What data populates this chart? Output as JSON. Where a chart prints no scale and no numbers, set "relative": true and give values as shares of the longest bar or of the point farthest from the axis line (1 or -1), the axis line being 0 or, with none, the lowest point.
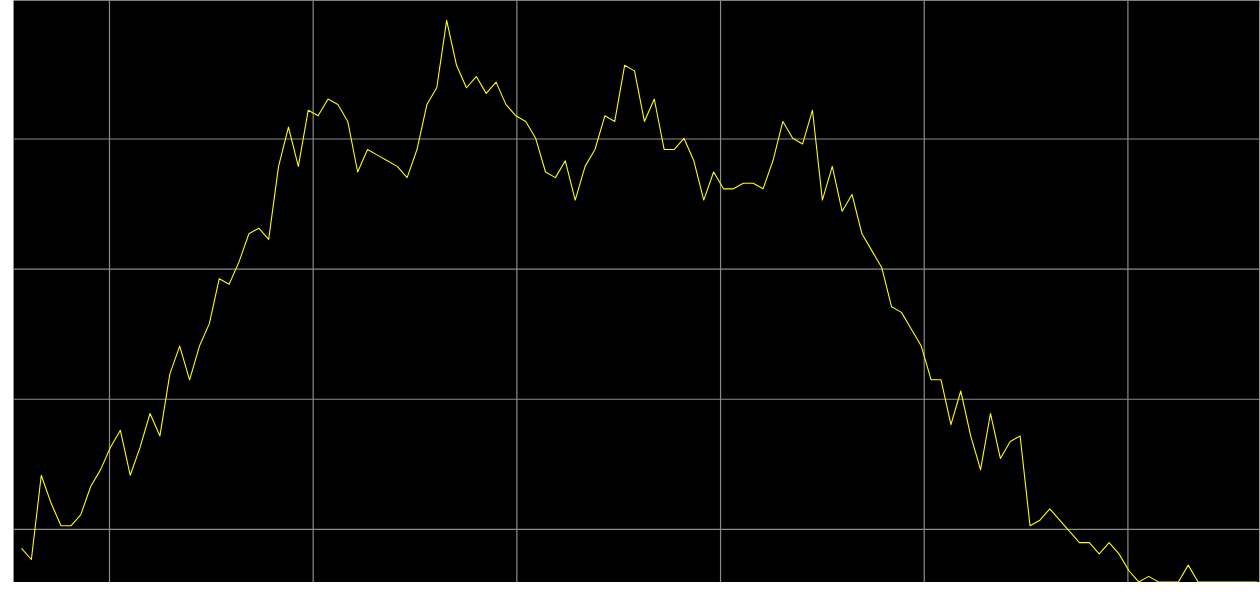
{
  "chart_data": {
    "type": "line",
    "relative": true,
    "grid": true,
    "tick_labels": false,
    "marker": "none",
    "line_style": "solid",
    "categories": [
      null,
      null,
      null,
      null,
      null,
      null,
      null,
      null,
      null,
      null,
      null,
      null,
      null,
      null,
      null,
      null,
      null,
      null,
      null,
      null,
      null,
      null,
      null,
      null,
      null,
      null,
      null,
      null,
      null,
      null,
      null,
      null,
      null,
      null,
      null,
      null,
      null,
      null,
      null,
      null,
      null,
      null,
      null,
      null,
      null,
      null,
      null,
      null,
      null,
      null,
      null,
      null,
      null,
      null,
      null,
      null,
      null,
      null,
      null,
      null,
      null,
      null,
      null,
      null,
      null,
      null,
      null,
      null,
      null,
      null,
      null,
      null,
      null,
      null,
      null,
      null,
      null,
      null,
      null,
      null,
      null,
      null,
      null,
      null,
      null,
      null,
      null,
      null,
      null,
      null,
      null,
      null,
      null,
      null,
      null,
      null,
      null,
      null,
      null,
      null,
      null,
      null,
      null,
      null,
      null,
      null,
      null,
      null,
      null,
      null,
      null,
      null,
      null,
      null,
      null,
      null,
      null,
      null,
      null,
      null,
      null,
      null,
      null,
      null,
      null,
      null
    ],
    "series": [
      {
        "color": "#ffff00",
        "values": [
          0.06,
          0.04,
          0.19,
          0.14,
          0.1,
          0.1,
          0.12,
          0.17,
          0.2,
          0.24,
          0.27,
          0.19,
          0.24,
          0.3,
          0.26,
          0.37,
          0.42,
          0.36,
          0.42,
          0.46,
          0.54,
          0.53,
          0.57,
          0.62,
          0.63,
          0.61,
          0.74,
          0.81,
          0.74,
          0.84,
          0.83,
          0.86,
          0.85,
          0.82,
          0.73,
          0.77,
          0.76,
          0.75,
          0.74,
          0.72,
          0.77,
          0.85,
          0.88,
          1.0,
          0.92,
          0.88,
          0.9,
          0.87,
          0.89,
          0.85,
          0.83,
          0.82,
          0.79,
          0.73,
          0.72,
          0.75,
          0.68,
          0.74,
          0.77,
          0.83,
          0.82,
          0.92,
          0.91,
          0.82,
          0.86,
          0.77,
          0.77,
          0.79,
          0.75,
          0.68,
          0.73,
          0.7,
          0.7,
          0.71,
          0.71,
          0.7,
          0.75,
          0.82,
          0.79,
          0.78,
          0.84,
          0.68,
          0.74,
          0.66,
          0.69,
          0.62,
          0.59,
          0.56,
          0.49,
          0.48,
          0.45,
          0.42,
          0.36,
          0.36,
          0.28,
          0.34,
          0.26,
          0.2,
          0.3,
          0.22,
          0.25,
          0.26,
          0.1,
          0.11,
          0.13,
          0.11,
          0.09,
          0.07,
          0.07,
          0.05,
          0.07,
          0.05,
          0.02,
          0.0,
          0.01,
          0,
          0,
          0,
          0.03,
          0,
          0,
          0,
          0,
          0,
          0,
          0
        ]
      }
    ]
  }
}
